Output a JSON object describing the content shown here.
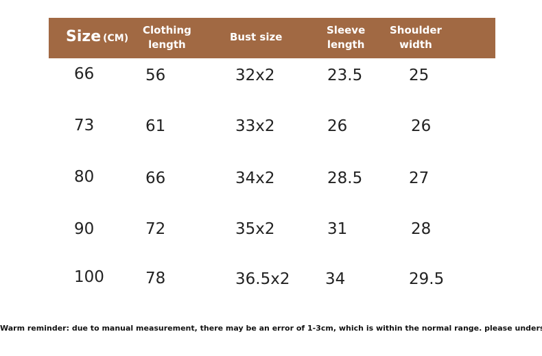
{
  "table": {
    "header": {
      "size": "Size",
      "size_unit": "(CM)",
      "clothing_length": "Clothing\nlength",
      "bust_size": "Bust size",
      "sleeve_length": "Sleeve\nlength",
      "shoulder_width": "Shoulder\nwidth"
    },
    "rows": [
      {
        "size": "66",
        "clothing_length": "56",
        "bust_size": "32x2",
        "sleeve_length": "23.5",
        "shoulder_width": "25"
      },
      {
        "size": "73",
        "clothing_length": "61",
        "bust_size": "33x2",
        "sleeve_length": "26",
        "shoulder_width": "26"
      },
      {
        "size": "80",
        "clothing_length": "66",
        "bust_size": "34x2",
        "sleeve_length": "28.5",
        "shoulder_width": "27"
      },
      {
        "size": "90",
        "clothing_length": "72",
        "bust_size": "35x2",
        "sleeve_length": "31",
        "shoulder_width": "28"
      },
      {
        "size": "100",
        "clothing_length": "78",
        "bust_size": "36.5x2",
        "sleeve_length": "34",
        "shoulder_width": "29.5"
      }
    ]
  },
  "footer": {
    "note": "Warm reminder: due to manual measurement, there may be an error of 1-3cm, which is within the normal range. please understand!"
  },
  "colors": {
    "header_background": "#a16943",
    "header_text": "#ffffff"
  }
}
